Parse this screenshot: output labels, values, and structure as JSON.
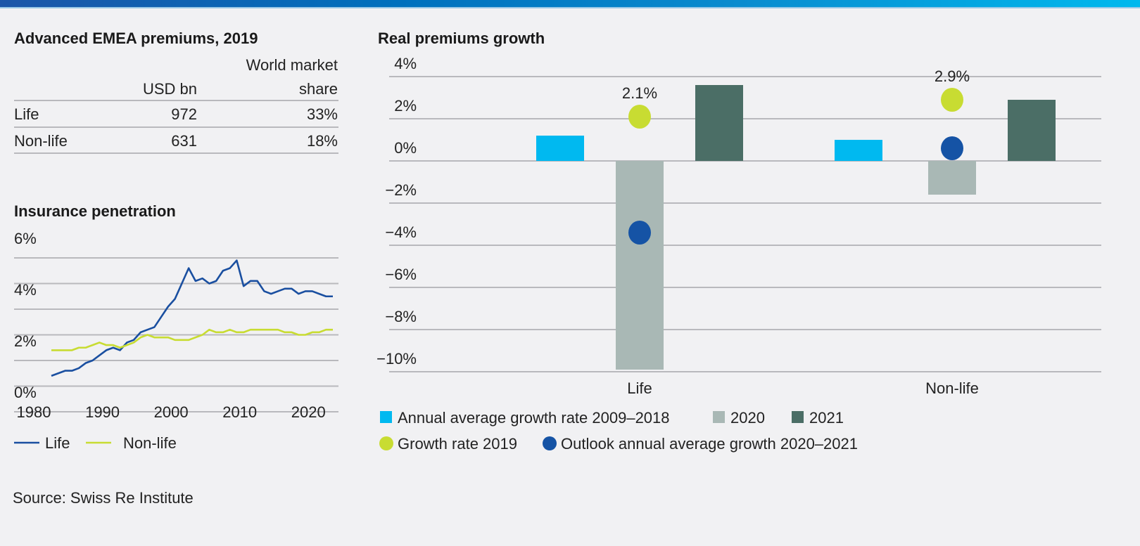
{
  "premiums_table": {
    "title": "Advanced EMEA premiums, 2019",
    "columns": [
      "",
      "USD bn",
      "World market share"
    ],
    "header_line1": "World",
    "header_line2_col1": "USD bn",
    "header_line2_col2": "market share",
    "rows": [
      {
        "label": "Life",
        "usd_bn": "972",
        "share": "33%"
      },
      {
        "label": "Non-life",
        "usd_bn": "631",
        "share": "18%"
      }
    ]
  },
  "source": "Source: Swiss Re Institute",
  "chart_data": [
    {
      "type": "line",
      "title": "Insurance penetration",
      "x": [
        1980,
        1981,
        1982,
        1983,
        1984,
        1985,
        1986,
        1987,
        1988,
        1989,
        1990,
        1991,
        1992,
        1993,
        1994,
        1995,
        1996,
        1997,
        1998,
        1999,
        2000,
        2001,
        2002,
        2003,
        2004,
        2005,
        2006,
        2007,
        2008,
        2009,
        2010,
        2011,
        2012,
        2013,
        2014,
        2015,
        2016,
        2017,
        2018,
        2019,
        2020,
        2021
      ],
      "xticks": [
        "1980",
        "1990",
        "2000",
        "2010",
        "2020"
      ],
      "yticks": [
        "0%",
        "2%",
        "4%",
        "6%"
      ],
      "ylim": [
        0,
        6
      ],
      "grid": true,
      "legend_position": "bottom",
      "series": [
        {
          "name": "Life",
          "color": "#1a4fa0",
          "values": [
            1.4,
            1.5,
            1.6,
            1.6,
            1.7,
            1.9,
            2.0,
            2.2,
            2.4,
            2.5,
            2.4,
            2.7,
            2.8,
            3.1,
            3.2,
            3.3,
            3.7,
            4.1,
            4.4,
            5.0,
            5.6,
            5.1,
            5.2,
            5.0,
            5.1,
            5.5,
            5.6,
            5.9,
            4.9,
            5.1,
            5.1,
            4.7,
            4.6,
            4.7,
            4.8,
            4.8,
            4.6,
            4.7,
            4.7,
            4.6,
            4.5,
            4.5
          ]
        },
        {
          "name": "Non-life",
          "color": "#c8dc32",
          "values": [
            2.4,
            2.4,
            2.4,
            2.4,
            2.5,
            2.5,
            2.6,
            2.7,
            2.6,
            2.6,
            2.5,
            2.6,
            2.7,
            2.9,
            3.0,
            2.9,
            2.9,
            2.9,
            2.8,
            2.8,
            2.8,
            2.9,
            3.0,
            3.2,
            3.1,
            3.1,
            3.2,
            3.1,
            3.1,
            3.2,
            3.2,
            3.2,
            3.2,
            3.2,
            3.1,
            3.1,
            3.0,
            3.0,
            3.1,
            3.1,
            3.2,
            3.2
          ]
        }
      ]
    },
    {
      "type": "bar",
      "title": "Real premiums growth",
      "categories": [
        "Life",
        "Non-life"
      ],
      "yticks": [
        "4%",
        "2%",
        "0%",
        "−2%",
        "−4%",
        "−6%",
        "−8%",
        "−10%"
      ],
      "ytick_values": [
        4,
        2,
        0,
        -2,
        -4,
        -6,
        -8,
        -10
      ],
      "ylim": [
        -10,
        4
      ],
      "grid": true,
      "legend_position": "bottom",
      "series": [
        {
          "name": "Annual average growth rate 2009–2018",
          "kind": "bar",
          "color": "#00b9f0",
          "values": [
            1.2,
            1.0
          ]
        },
        {
          "name": "2020",
          "kind": "bar",
          "color": "#a9b8b5",
          "values": [
            -9.9,
            -1.6
          ]
        },
        {
          "name": "2021",
          "kind": "bar",
          "color": "#4b6e66",
          "values": [
            3.6,
            2.9
          ]
        },
        {
          "name": "Growth rate 2019",
          "kind": "dot",
          "color": "#c8dc32",
          "values": [
            2.1,
            2.9
          ]
        },
        {
          "name": "Outlook annual average growth 2020–2021",
          "kind": "dot",
          "color": "#1553a5",
          "values": [
            -3.4,
            0.6
          ]
        }
      ],
      "annotations": [
        {
          "category": "Life",
          "text": "2.1%"
        },
        {
          "category": "Non-life",
          "text": "2.9%"
        }
      ]
    }
  ]
}
